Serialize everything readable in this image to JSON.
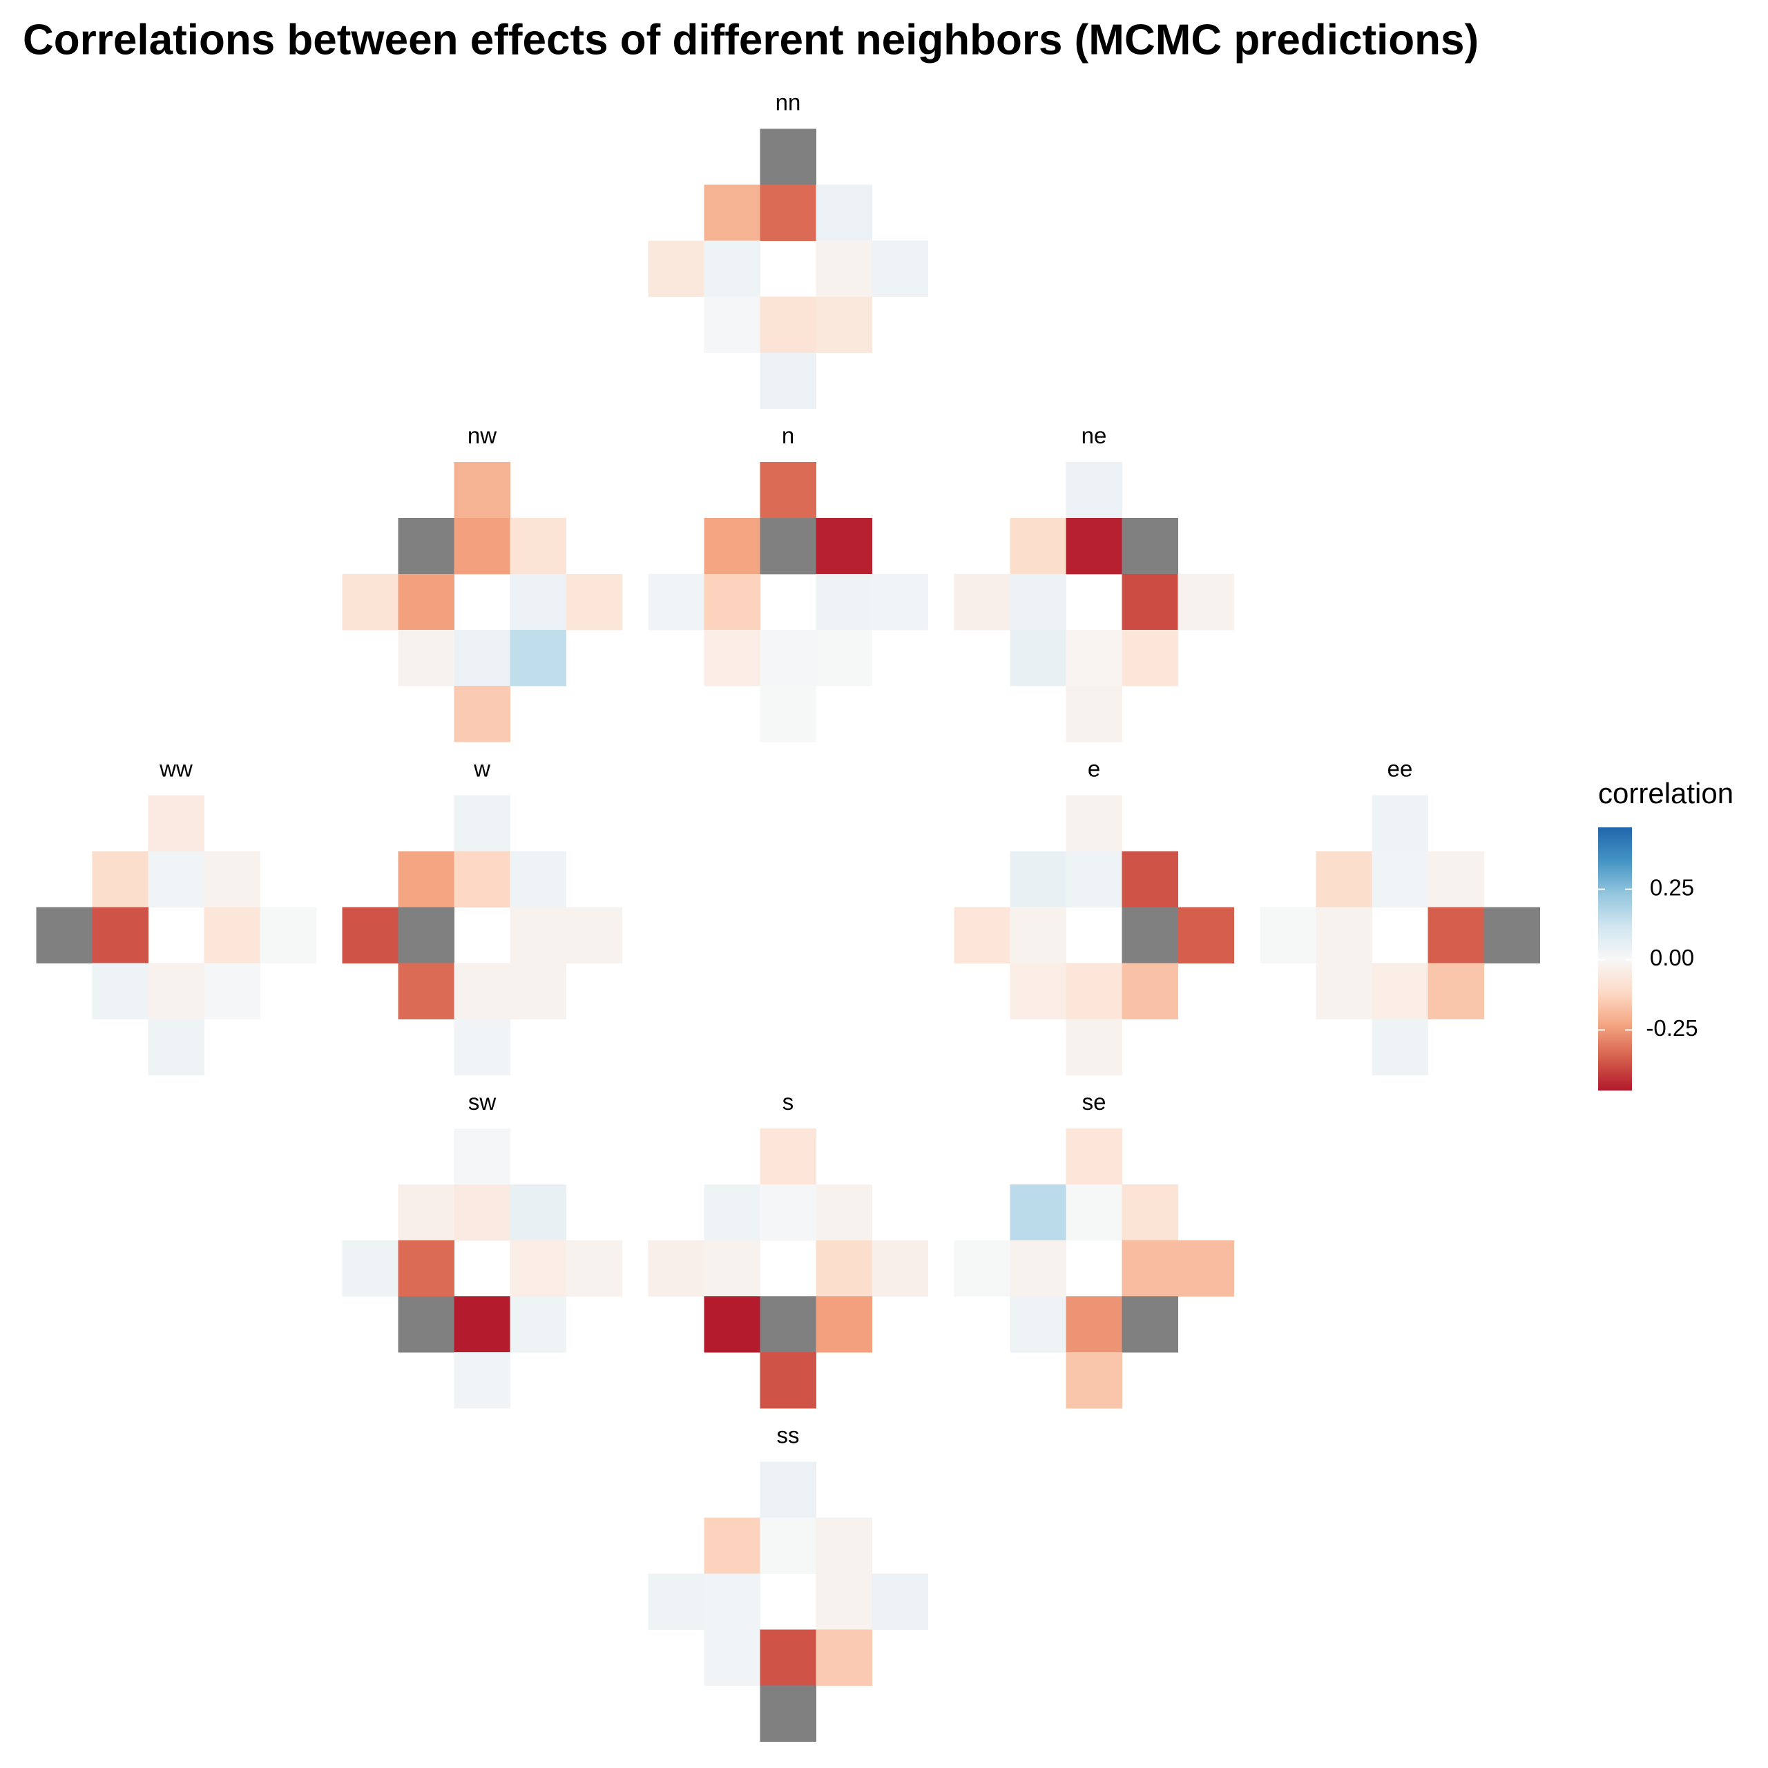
{
  "chart_data": {
    "type": "heatmap",
    "title": "Correlations between effects of different neighbors (MCMC predictions)",
    "cells": [
      "nn",
      "nw",
      "n",
      "ne",
      "ww",
      "w",
      "e",
      "ee",
      "sw",
      "s",
      "se",
      "ss"
    ],
    "panels": [
      {
        "name": "nn",
        "values": [
          null,
          -0.2,
          -0.33,
          0.04,
          -0.06,
          0.03,
          -0.02,
          0.03,
          0.01,
          -0.08,
          -0.06,
          0.04
        ]
      },
      {
        "name": "nw",
        "values": [
          -0.2,
          null,
          -0.24,
          -0.08,
          -0.08,
          -0.24,
          0.04,
          -0.07,
          -0.02,
          0.04,
          0.15,
          -0.15
        ]
      },
      {
        "name": "n",
        "values": [
          -0.33,
          -0.23,
          null,
          -0.45,
          0.02,
          -0.13,
          0.03,
          0.02,
          -0.04,
          0.01,
          0.005,
          0.005
        ]
      },
      {
        "name": "ne",
        "values": [
          0.04,
          -0.1,
          -0.45,
          null,
          -0.03,
          0.04,
          -0.38,
          -0.02,
          0.05,
          -0.01,
          -0.07,
          -0.02
        ]
      },
      {
        "name": "ww",
        "values": [
          -0.05,
          -0.1,
          0.02,
          -0.02,
          null,
          -0.37,
          -0.07,
          0.005,
          0.03,
          -0.02,
          0.01,
          0.03
        ]
      },
      {
        "name": "w",
        "values": [
          0.03,
          -0.23,
          -0.12,
          0.03,
          -0.37,
          null,
          -0.02,
          -0.02,
          -0.33,
          -0.02,
          -0.02,
          0.02
        ]
      },
      {
        "name": "e",
        "values": [
          -0.02,
          0.05,
          0.03,
          -0.37,
          -0.07,
          -0.02,
          null,
          -0.35,
          -0.04,
          -0.07,
          -0.17,
          -0.02
        ]
      },
      {
        "name": "ee",
        "values": [
          0.03,
          -0.1,
          0.02,
          -0.02,
          0.005,
          -0.02,
          -0.35,
          null,
          -0.02,
          -0.04,
          -0.16,
          0.03
        ]
      },
      {
        "name": "sw",
        "values": [
          0.01,
          -0.03,
          -0.05,
          0.05,
          0.03,
          -0.33,
          -0.04,
          -0.02,
          null,
          -0.46,
          0.03,
          0.02
        ]
      },
      {
        "name": "s",
        "values": [
          -0.07,
          0.03,
          0.01,
          -0.02,
          -0.03,
          -0.02,
          -0.1,
          -0.03,
          -0.46,
          null,
          -0.24,
          -0.37
        ]
      },
      {
        "name": "se",
        "values": [
          -0.07,
          0.16,
          0.005,
          -0.08,
          0.005,
          -0.02,
          -0.18,
          -0.18,
          0.03,
          -0.26,
          null,
          -0.16
        ]
      },
      {
        "name": "ss",
        "values": [
          0.04,
          -0.13,
          0.005,
          -0.02,
          0.03,
          0.02,
          -0.02,
          0.04,
          0.02,
          -0.37,
          -0.15,
          null
        ]
      }
    ],
    "legend_title": "correlation",
    "lim": [
      -0.465,
      0.47
    ],
    "ticks": [
      0.25,
      {
        "value": 0,
        "label": "0.00"
      },
      -0.25
    ],
    "palette": [
      "#b2182b",
      "#d6604d",
      "#f4a582",
      "#fddbc7",
      "#f7f7f7",
      "#d1e5f0",
      "#92c5de",
      "#4393c3",
      "#2166ac"
    ],
    "na_color": "#808080"
  }
}
